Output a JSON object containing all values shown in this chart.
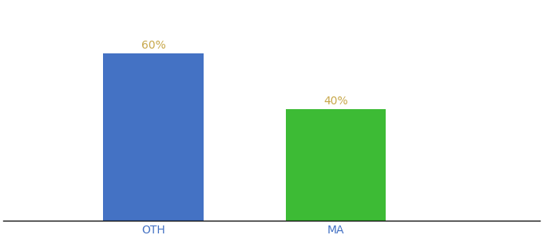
{
  "categories": [
    "OTH",
    "MA"
  ],
  "values": [
    60,
    40
  ],
  "bar_colors": [
    "#4472c4",
    "#3dbb35"
  ],
  "value_labels": [
    "60%",
    "40%"
  ],
  "label_color": "#c8a84b",
  "tick_color": "#4472c4",
  "ylim": [
    0,
    78
  ],
  "background_color": "#ffffff",
  "bar_width": 0.55,
  "label_fontsize": 10,
  "tick_fontsize": 10,
  "bar_positions": [
    0.28,
    0.62
  ],
  "xlim": [
    0.0,
    1.0
  ]
}
